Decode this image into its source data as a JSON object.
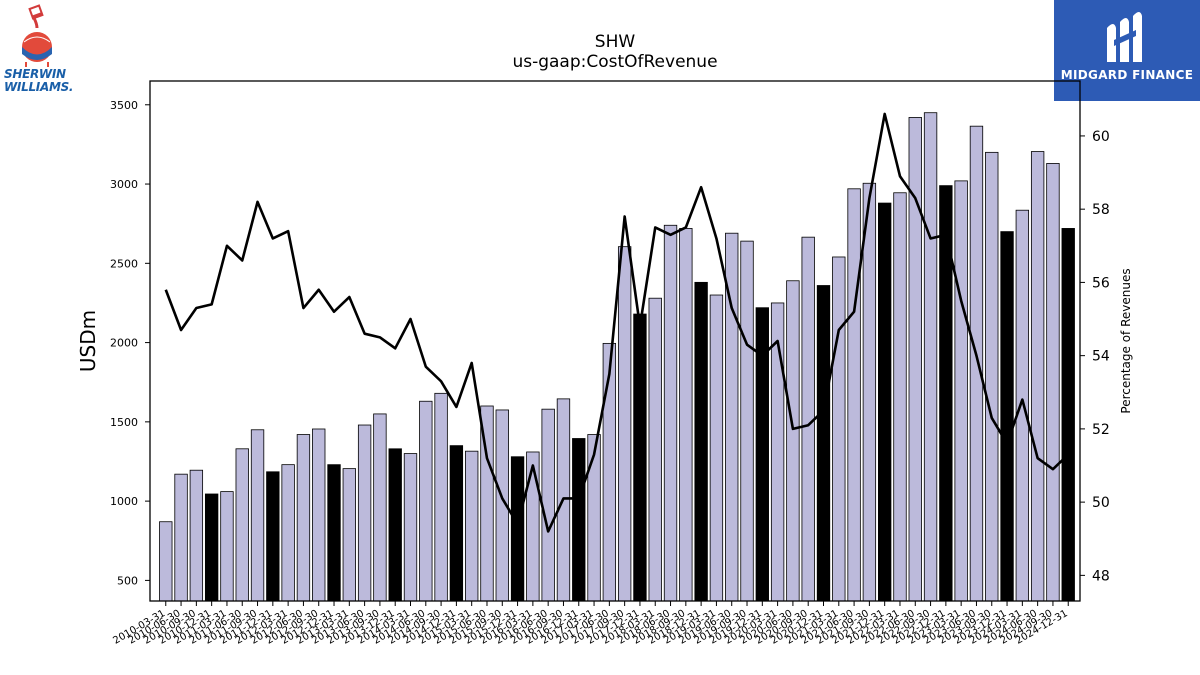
{
  "header": {
    "ticker": "SHW",
    "subtitle": "us-gaap:CostOfRevenue"
  },
  "logos": {
    "left_brand_line1": "SHERWIN",
    "left_brand_line2": "WILLIAMS.",
    "left_icon": "cover-the-earth-logo",
    "right_brand": "MIDGARD FINANCE",
    "right_icon": "midgard-m-logo"
  },
  "chart_data": {
    "type": "bar",
    "ylabel": "USDm",
    "y2label": "Percentage of Revenues",
    "ylim": [
      370,
      3650
    ],
    "y2lim": [
      47.3,
      61.5
    ],
    "yticks": [
      500,
      1000,
      1500,
      2000,
      2500,
      3000,
      3500
    ],
    "y2ticks": [
      48,
      50,
      52,
      54,
      56,
      58,
      60
    ],
    "bar_color_quarter": "#bcbadb",
    "bar_color_annual": "#000000",
    "line_color": "#000000",
    "categories": [
      "2010-03-31",
      "2010-06-30",
      "2010-09-30",
      "2010-12-31",
      "2011-03-31",
      "2011-06-30",
      "2011-09-30",
      "2011-12-31",
      "2012-03-31",
      "2012-06-30",
      "2012-09-30",
      "2012-12-31",
      "2013-03-31",
      "2013-06-30",
      "2013-09-30",
      "2013-12-31",
      "2014-03-31",
      "2014-06-30",
      "2014-09-30",
      "2014-12-31",
      "2015-03-31",
      "2015-06-30",
      "2015-09-30",
      "2015-12-31",
      "2016-03-31",
      "2016-06-30",
      "2016-09-30",
      "2016-12-31",
      "2017-03-31",
      "2017-06-30",
      "2017-09-30",
      "2017-12-31",
      "2018-03-31",
      "2018-06-30",
      "2018-09-30",
      "2018-12-31",
      "2019-03-31",
      "2019-06-30",
      "2019-09-30",
      "2019-12-31",
      "2020-03-31",
      "2020-06-30",
      "2020-09-30",
      "2020-12-31",
      "2021-03-31",
      "2021-06-30",
      "2021-09-30",
      "2021-12-31",
      "2022-03-31",
      "2022-06-30",
      "2022-09-30",
      "2022-12-31",
      "2023-03-31",
      "2023-06-30",
      "2023-09-30",
      "2023-12-31",
      "2024-03-31",
      "2024-06-30",
      "2024-09-30",
      "2024-12-31"
    ],
    "annual": [
      false,
      false,
      false,
      true,
      false,
      false,
      false,
      true,
      false,
      false,
      false,
      true,
      false,
      false,
      false,
      true,
      false,
      false,
      false,
      true,
      false,
      false,
      false,
      true,
      false,
      false,
      false,
      true,
      false,
      false,
      false,
      true,
      false,
      false,
      false,
      true,
      false,
      false,
      false,
      true,
      false,
      false,
      false,
      true,
      false,
      false,
      false,
      true,
      false,
      false,
      false,
      true,
      false,
      false,
      false,
      true,
      false,
      false,
      false,
      true
    ],
    "series": [
      {
        "name": "",
        "values": [
          870,
          1170,
          1195,
          1045,
          1060,
          1330,
          1450,
          1185,
          1230,
          1420,
          1455,
          1230,
          1205,
          1480,
          1550,
          1330,
          1300,
          1630,
          1680,
          1350,
          1315,
          1600,
          1575,
          1280,
          1310,
          1580,
          1645,
          1395,
          1420,
          1995,
          2605,
          2180,
          2280,
          2740,
          2720,
          2380,
          2300,
          2690,
          2640,
          2220,
          2250,
          2390,
          2665,
          2360,
          2540,
          2970,
          3005,
          2880,
          2945,
          3420,
          3450,
          2990,
          3020,
          3365,
          3200,
          2700,
          2835,
          3205,
          3130,
          2720
        ]
      },
      {
        "name": "",
        "axis": "right",
        "values": [
          55.8,
          54.7,
          55.3,
          55.4,
          57.0,
          56.6,
          58.2,
          57.2,
          57.4,
          55.3,
          55.8,
          55.2,
          55.6,
          54.6,
          54.5,
          54.2,
          55.0,
          53.7,
          53.3,
          52.6,
          53.8,
          51.2,
          50.1,
          49.4,
          51.0,
          49.2,
          50.1,
          50.1,
          51.3,
          53.5,
          57.8,
          54.8,
          57.5,
          57.3,
          57.5,
          58.6,
          57.2,
          55.3,
          54.3,
          54.0,
          54.4,
          52.0,
          52.1,
          52.5,
          54.7,
          55.2,
          58.3,
          60.6,
          58.9,
          58.3,
          57.2,
          57.3,
          55.5,
          54.0,
          52.3,
          51.6,
          52.8,
          51.2,
          50.9,
          51.3
        ]
      }
    ]
  }
}
